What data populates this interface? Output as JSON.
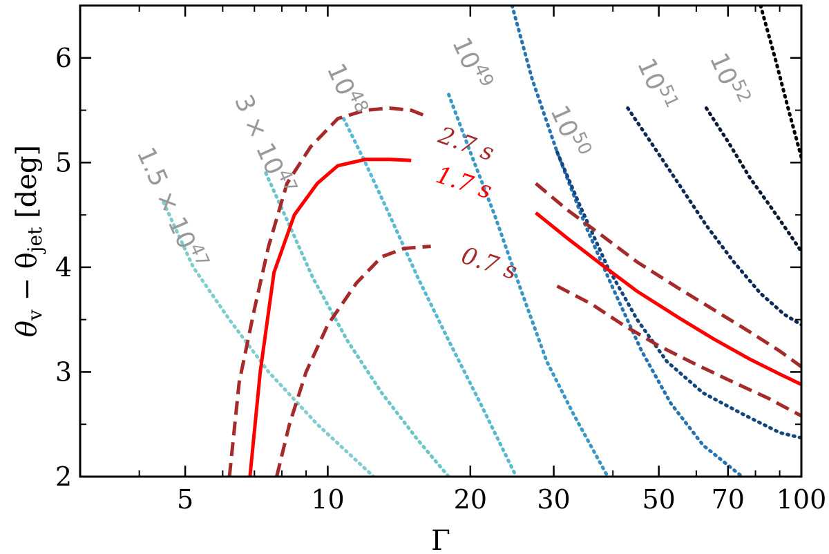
{
  "chart_data": {
    "type": "line",
    "xlabel": "Γ",
    "ylabel_main": "θ",
    "ylabel_sub1": "v",
    "ylabel_mid": " − θ",
    "ylabel_sub2": "jet",
    "ylabel_unit": " [deg]",
    "x_scale": "log",
    "xlim": [
      3.0,
      100
    ],
    "ylim": [
      2.0,
      6.5
    ],
    "x_ticks_major": [
      5,
      10,
      20,
      30,
      50,
      70,
      100
    ],
    "x_ticks_minor": [
      4,
      6,
      7,
      8,
      9,
      40,
      60,
      80,
      90
    ],
    "y_ticks_major": [
      2,
      3,
      4,
      5,
      6
    ],
    "y_ticks_minor": [
      2.5,
      3.5,
      4.5,
      5.5
    ],
    "grid": false,
    "contours": [
      {
        "label": "1.5 × 10",
        "exp": "47",
        "color": "#7fcdcc",
        "x": [
          4.5,
          5.2,
          6.2,
          7.5,
          9.5,
          12.5
        ],
        "y": [
          4.62,
          4.0,
          3.5,
          3.0,
          2.5,
          2.0
        ],
        "label_x": 3.95,
        "label_y": 5.1,
        "label_angle": 66
      },
      {
        "label": "3 × 10",
        "exp": "47",
        "color": "#6ac6c9",
        "x": [
          7.4,
          8.3,
          9.3,
          11.0,
          13.0,
          15.5,
          18.0
        ],
        "y": [
          4.9,
          4.4,
          3.9,
          3.3,
          2.8,
          2.35,
          2.0
        ],
        "label_x": 6.35,
        "label_y": 5.6,
        "label_angle": 66
      },
      {
        "label": "10",
        "exp": "48",
        "color": "#57b9d3",
        "x": [
          10.8,
          12.0,
          13.5,
          15.5,
          18.0,
          21.0,
          25.0
        ],
        "y": [
          5.42,
          5.0,
          4.5,
          3.9,
          3.3,
          2.7,
          2.0
        ],
        "label_x": 9.95,
        "label_y": 5.9,
        "label_angle": 66
      },
      {
        "label": "10",
        "exp": "49",
        "color": "#3a98c6",
        "x": [
          18.0,
          20.0,
          22.5,
          25.5,
          29.0,
          33.0,
          39.0
        ],
        "y": [
          5.65,
          5.1,
          4.5,
          3.8,
          3.1,
          2.6,
          2.0
        ],
        "label_x": 18.3,
        "label_y": 6.15,
        "label_angle": 66
      },
      {
        "label": "10",
        "exp": "50",
        "color": "#2773b1",
        "x": [
          24.5,
          27.0,
          30.5,
          35.0,
          40.0,
          46.0,
          53.0,
          62.0,
          75.0
        ],
        "y": [
          6.5,
          5.8,
          5.1,
          4.4,
          3.8,
          3.2,
          2.7,
          2.3,
          2.0
        ],
        "label_x": 29.5,
        "label_y": 5.5,
        "label_angle": 66
      },
      {
        "label": "10",
        "exp": "51",
        "color": "#13467f",
        "x": [
          30.5,
          34.0,
          39.0,
          45.0,
          52.0,
          62.0,
          75.0,
          90.0,
          100.0
        ],
        "y": [
          5.1,
          4.6,
          4.0,
          3.5,
          3.1,
          2.8,
          2.6,
          2.42,
          2.37
        ],
        "label_x": 45.0,
        "label_y": 5.95,
        "label_angle": 66
      },
      {
        "label": "10",
        "exp": "52",
        "color": "#0c2a55",
        "x": [
          43.0,
          48.0,
          55.0,
          63.0,
          72.0,
          82.0,
          92.0,
          100.0
        ],
        "y": [
          5.52,
          5.2,
          4.8,
          4.4,
          4.05,
          3.75,
          3.55,
          3.45
        ],
        "label_x": 64.0,
        "label_y": 6.0,
        "label_angle": 66
      },
      {
        "label": "",
        "exp": "",
        "color": "#0a1a30",
        "x": [
          63.0,
          70.0,
          78.0,
          87.0,
          95.0,
          100.0
        ],
        "y": [
          5.52,
          5.2,
          4.85,
          4.55,
          4.3,
          4.15
        ]
      },
      {
        "label": "",
        "exp": "",
        "color": "#000000",
        "x": [
          82.0,
          88.0,
          94.0,
          100.0
        ],
        "y": [
          6.5,
          6.0,
          5.5,
          5.05
        ]
      }
    ],
    "series": [
      {
        "name": "2.7 s",
        "style": "dashed",
        "color": "#a52a2a",
        "part": "left",
        "x": [
          6.2,
          6.5,
          7.0,
          7.5,
          8.2,
          9.2,
          10.5,
          12.0,
          13.5,
          15.0,
          16.0
        ],
        "y": [
          2.0,
          2.9,
          3.6,
          4.2,
          4.8,
          5.15,
          5.42,
          5.5,
          5.52,
          5.5,
          5.45
        ]
      },
      {
        "name": "",
        "style": "dashed",
        "color": "#a52a2a",
        "part": "right",
        "x": [
          27.5,
          32.0,
          38.0,
          45.0,
          55.0,
          65.0,
          78.0,
          90.0,
          100.0
        ],
        "y": [
          4.8,
          4.55,
          4.3,
          4.05,
          3.8,
          3.6,
          3.38,
          3.2,
          3.05
        ]
      },
      {
        "name": "1.7 s",
        "style": "solid",
        "color": "#ff0000",
        "part": "left",
        "x": [
          6.85,
          7.2,
          7.7,
          8.5,
          9.5,
          10.5,
          12.0,
          13.5,
          15.0
        ],
        "y": [
          2.0,
          3.0,
          3.95,
          4.5,
          4.8,
          4.97,
          5.03,
          5.03,
          5.02
        ],
        "label_x": 16.8,
        "label_y": 4.82
      },
      {
        "name": "",
        "style": "solid",
        "color": "#ff0000",
        "part": "right",
        "x": [
          27.5,
          32.0,
          38.0,
          45.0,
          55.0,
          65.0,
          78.0,
          90.0,
          100.0
        ],
        "y": [
          4.52,
          4.28,
          4.02,
          3.77,
          3.52,
          3.32,
          3.12,
          2.98,
          2.88
        ]
      },
      {
        "name": "0.7 s",
        "style": "dashed",
        "color": "#a52a2a",
        "part": "left",
        "x": [
          7.8,
          8.3,
          9.0,
          10.0,
          11.5,
          13.0,
          14.5,
          16.5
        ],
        "y": [
          2.0,
          2.5,
          3.0,
          3.45,
          3.85,
          4.1,
          4.18,
          4.2
        ],
        "label_x": 19.0,
        "label_y": 4.05
      },
      {
        "name": "",
        "style": "dashed",
        "color": "#a52a2a",
        "part": "right",
        "x": [
          30.5,
          36.0,
          42.0,
          50.0,
          60.0,
          72.0,
          85.0,
          100.0
        ],
        "y": [
          3.82,
          3.65,
          3.45,
          3.25,
          3.07,
          2.9,
          2.75,
          2.58
        ]
      }
    ],
    "labels_top": {
      "t27": {
        "text": "2.7 s",
        "x": 17.0,
        "y": 5.2,
        "color": "#a52a2a",
        "angle": 20
      }
    }
  }
}
